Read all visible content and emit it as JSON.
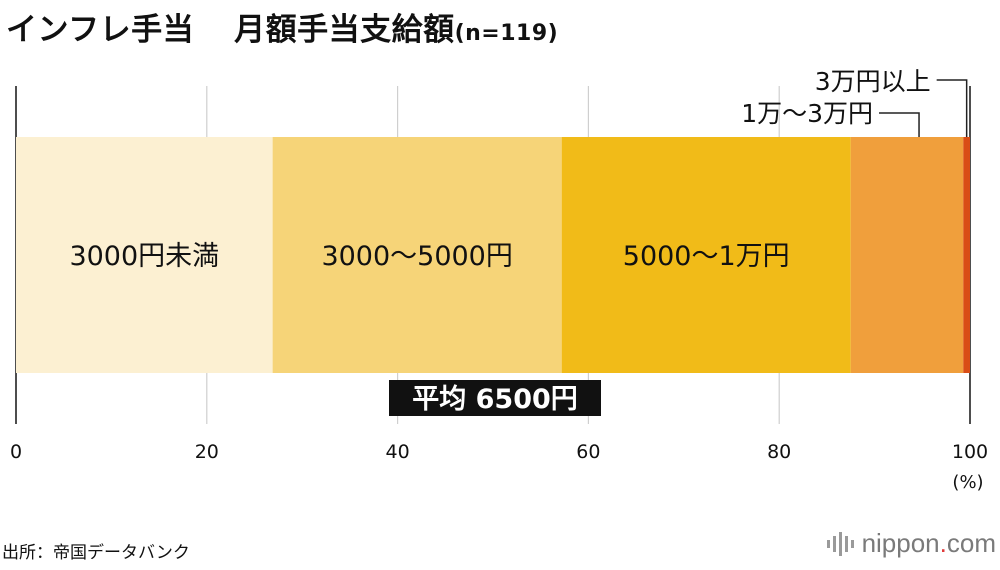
{
  "title": {
    "main": "インフレ手当",
    "sub": "月額手当支給額",
    "n": "(n=119)"
  },
  "chart_data": {
    "type": "bar",
    "orientation": "horizontal-stacked-100",
    "xlim": [
      0,
      100
    ],
    "xticks": [
      "0",
      "20",
      "40",
      "60",
      "80",
      "100"
    ],
    "xunit": "(%)",
    "grid": true,
    "series": [
      {
        "name": "3000円未満",
        "value": 26.9,
        "color": "#fcf0d2"
      },
      {
        "name": "3000〜5000円",
        "value": 30.3,
        "color": "#f6d478"
      },
      {
        "name": "5000〜1万円",
        "value": 30.3,
        "color": "#f1bb18"
      },
      {
        "name": "1万〜3万円",
        "value": 11.8,
        "color": "#f09f3c"
      },
      {
        "name": "3万円以上",
        "value": 0.7,
        "color": "#d94d16"
      }
    ],
    "annotation": "平均 6500円"
  },
  "source": "出所：帝国データバンク",
  "logo": {
    "pre": "nippon",
    "dot": ".",
    "post": "com"
  }
}
